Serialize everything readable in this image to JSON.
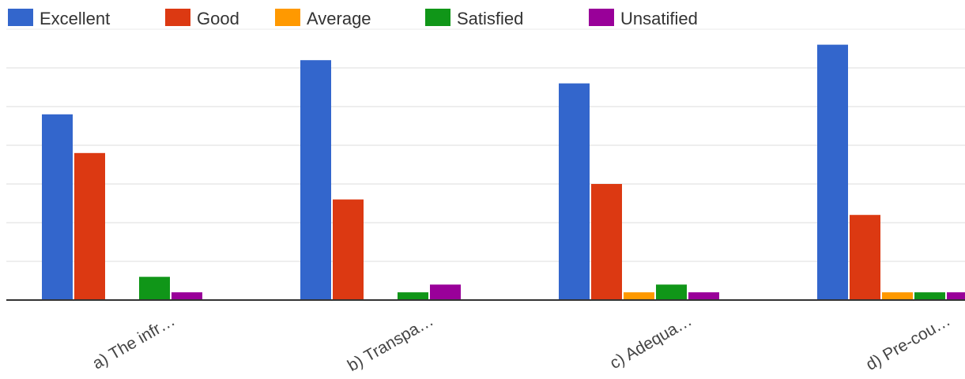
{
  "chart_data": {
    "type": "bar",
    "categories": [
      "a) The infr…",
      "b) Transpa…",
      "c) Adequa…",
      "d) Pre-cou…"
    ],
    "series": [
      {
        "name": "Excellent",
        "color": "#3366cc",
        "values": [
          48,
          62,
          56,
          66
        ]
      },
      {
        "name": "Good",
        "color": "#dc3912",
        "values": [
          38,
          26,
          30,
          22
        ]
      },
      {
        "name": "Average",
        "color": "#ff9900",
        "values": [
          0,
          0,
          2,
          2
        ]
      },
      {
        "name": "Satisfied",
        "color": "#109618",
        "values": [
          6,
          2,
          4,
          2
        ]
      },
      {
        "name": "Unsatified",
        "color": "#990099",
        "values": [
          2,
          4,
          2,
          2
        ]
      }
    ],
    "ylim": [
      0,
      70
    ],
    "grid": true,
    "legend_position": "top-left"
  }
}
